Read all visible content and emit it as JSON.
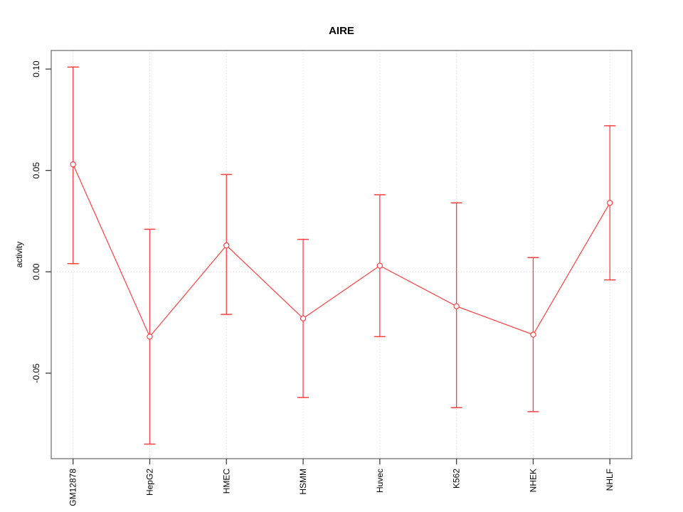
{
  "chart_data": {
    "type": "line",
    "title": "AIRE",
    "xlabel": "",
    "ylabel": "activity",
    "categories": [
      "GM12878",
      "HepG2",
      "HMEC",
      "HSMM",
      "Huvec",
      "K562",
      "NHEK",
      "NHLF"
    ],
    "series": [
      {
        "name": "activity",
        "marker": "open-circle",
        "values": [
          0.053,
          -0.032,
          0.013,
          -0.023,
          0.003,
          -0.017,
          -0.031,
          0.034
        ],
        "error_low": [
          0.004,
          -0.085,
          -0.021,
          -0.062,
          -0.032,
          -0.067,
          -0.069,
          -0.004
        ],
        "error_high": [
          0.101,
          0.021,
          0.048,
          0.016,
          0.038,
          0.034,
          0.007,
          0.072
        ]
      }
    ],
    "y_ticks": [
      -0.05,
      0,
      0.05,
      0.1
    ],
    "y_tick_labels": [
      "-0.05",
      "0.00",
      "0.05",
      "0.10"
    ],
    "ylim": [
      -0.092,
      0.109
    ],
    "legend": "none",
    "grid": {
      "vertical": "dotted line at each category",
      "horizontal": "dotted line at y = 0 only"
    },
    "colors": {
      "series": "#ff4040",
      "grid": "#d6d6d6",
      "box": "#7d7d7d",
      "tick": "#3f3f3f",
      "text": "#000000",
      "background": "#ffffff"
    }
  }
}
